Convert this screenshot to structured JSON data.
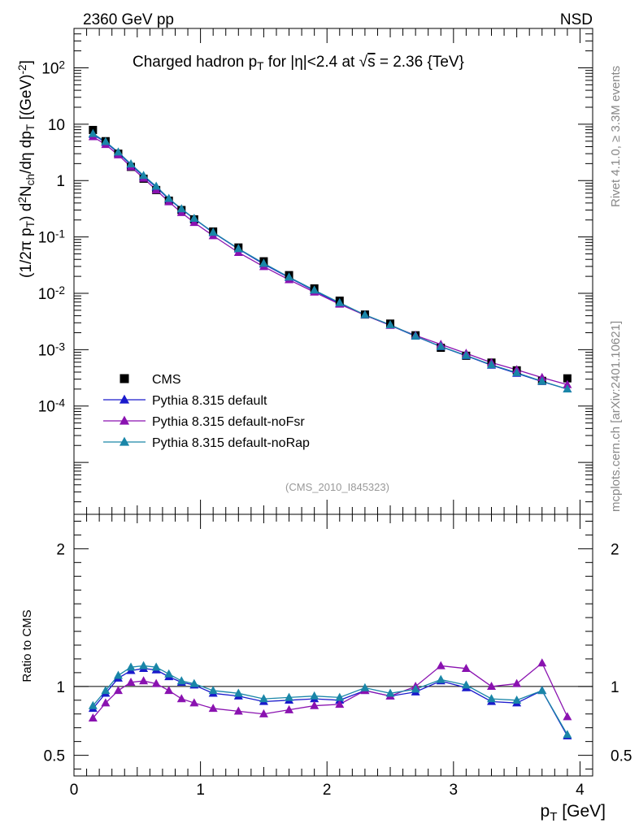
{
  "header": {
    "left_label": "2360 GeV pp",
    "right_label": "NSD"
  },
  "side_labels": {
    "rivet": "Rivet 4.1.0, ≥ 3.3M events",
    "mcplots": "mcplots.cern.ch [arXiv:2401.10621]"
  },
  "chart_data": [
    {
      "type": "scatter",
      "panel": "main",
      "title_parts": [
        "Charged hadron p",
        "T",
        " for |η|<2.4 at ",
        "s",
        " = 2.36 {TeV}"
      ],
      "analysis_tag": "(CMS_2010_I845323)",
      "ylabel_parts": [
        "(1/2π p",
        "T",
        ") d",
        "2",
        "N",
        "ch",
        "/dη  dp",
        "T",
        " [(GeV)",
        "-2",
        "]"
      ],
      "yscale": "log",
      "ylim": [
        1.2e-06,
        500
      ],
      "xlim": [
        0,
        4.1
      ],
      "y_tick_labels": [
        {
          "base": "10",
          "exp": "-4",
          "value": 0.0001
        },
        {
          "base": "10",
          "exp": "-3",
          "value": 0.001
        },
        {
          "base": "10",
          "exp": "-2",
          "value": 0.01
        },
        {
          "base": "10",
          "exp": "-1",
          "value": 0.1
        },
        {
          "base": "1",
          "exp": "",
          "value": 1
        },
        {
          "base": "10",
          "exp": "",
          "value": 10
        },
        {
          "base": "10",
          "exp": "2",
          "value": 100
        }
      ],
      "x": [
        0.15,
        0.25,
        0.35,
        0.45,
        0.55,
        0.65,
        0.75,
        0.85,
        0.95,
        1.1,
        1.3,
        1.5,
        1.7,
        1.9,
        2.1,
        2.3,
        2.5,
        2.7,
        2.9,
        3.1,
        3.3,
        3.5,
        3.7,
        3.9
      ],
      "series": [
        {
          "name": "CMS",
          "marker": "square",
          "color": "#000000",
          "values": [
            7.9,
            5.0,
            3.0,
            1.75,
            1.08,
            0.68,
            0.44,
            0.3,
            0.205,
            0.125,
            0.065,
            0.037,
            0.021,
            0.0122,
            0.0074,
            0.0042,
            0.0029,
            0.0018,
            0.00108,
            0.00078,
            0.00059,
            0.00043,
            0.00028,
            0.00031
          ]
        },
        {
          "name": "Pythia 8.315 default",
          "marker": "triangle",
          "color": "#1a1acc",
          "values": [
            6.6,
            4.75,
            3.1,
            1.9,
            1.19,
            0.76,
            0.47,
            0.31,
            0.21,
            0.119,
            0.061,
            0.033,
            0.019,
            0.0111,
            0.0066,
            0.0041,
            0.0027,
            0.00173,
            0.00113,
            0.00078,
            0.00053,
            0.00038,
            0.000272,
            0.0002
          ]
        },
        {
          "name": "Pythia 8.315 default-noFsr",
          "marker": "triangle",
          "color": "#8a12b0",
          "values": [
            6.0,
            4.35,
            2.85,
            1.75,
            1.1,
            0.68,
            0.42,
            0.27,
            0.18,
            0.105,
            0.053,
            0.0297,
            0.0174,
            0.0105,
            0.0064,
            0.0041,
            0.0027,
            0.00179,
            0.00124,
            0.00086,
            0.00059,
            0.00044,
            0.00032,
            0.00024
          ]
        },
        {
          "name": "Pythia 8.315 default-noRap",
          "marker": "triangle",
          "color": "#1a86a8",
          "values": [
            6.8,
            4.9,
            3.2,
            1.97,
            1.23,
            0.79,
            0.48,
            0.315,
            0.213,
            0.121,
            0.062,
            0.034,
            0.0194,
            0.0114,
            0.0068,
            0.00415,
            0.00276,
            0.00174,
            0.00114,
            0.00079,
            0.00054,
            0.00039,
            0.000275,
            0.0002
          ]
        }
      ]
    },
    {
      "type": "line",
      "panel": "ratio",
      "ylabel": "Ratio to CMS",
      "xlabel_parts": [
        "p",
        "T",
        " [GeV]"
      ],
      "ylim": [
        0.35,
        2.25
      ],
      "xlim": [
        0,
        4.1
      ],
      "y_tick_labels": [
        "0.5",
        "1",
        "2"
      ],
      "y_tick_values": [
        0.5,
        1,
        2
      ],
      "x_tick_labels": [
        "0",
        "1",
        "2",
        "3",
        "4"
      ],
      "x_tick_values": [
        0,
        1,
        2,
        3,
        4
      ],
      "reference_line": 1,
      "x": [
        0.15,
        0.25,
        0.35,
        0.45,
        0.55,
        0.65,
        0.75,
        0.85,
        0.95,
        1.1,
        1.3,
        1.5,
        1.7,
        1.9,
        2.1,
        2.3,
        2.5,
        2.7,
        2.9,
        3.1,
        3.3,
        3.5,
        3.7,
        3.9
      ],
      "series": [
        {
          "name": "Pythia 8.315 default",
          "color": "#1a1acc",
          "values": [
            0.84,
            0.95,
            1.06,
            1.115,
            1.13,
            1.12,
            1.07,
            1.03,
            1.01,
            0.95,
            0.93,
            0.89,
            0.9,
            0.91,
            0.9,
            0.97,
            0.93,
            0.96,
            1.04,
            0.99,
            0.89,
            0.88,
            0.97,
            0.64
          ]
        },
        {
          "name": "Pythia 8.315 default-noFsr",
          "color": "#8a12b0",
          "values": [
            0.77,
            0.88,
            0.97,
            1.03,
            1.04,
            1.02,
            0.97,
            0.91,
            0.88,
            0.84,
            0.82,
            0.8,
            0.83,
            0.86,
            0.87,
            0.97,
            0.93,
            1.0,
            1.15,
            1.13,
            1.0,
            1.02,
            1.17,
            0.78
          ]
        },
        {
          "name": "Pythia 8.315 default-noRap",
          "color": "#1a86a8",
          "values": [
            0.86,
            0.97,
            1.08,
            1.14,
            1.15,
            1.14,
            1.09,
            1.04,
            1.02,
            0.97,
            0.95,
            0.91,
            0.92,
            0.93,
            0.92,
            0.99,
            0.95,
            0.98,
            1.05,
            1.01,
            0.91,
            0.9,
            0.97,
            0.65
          ]
        }
      ]
    }
  ]
}
